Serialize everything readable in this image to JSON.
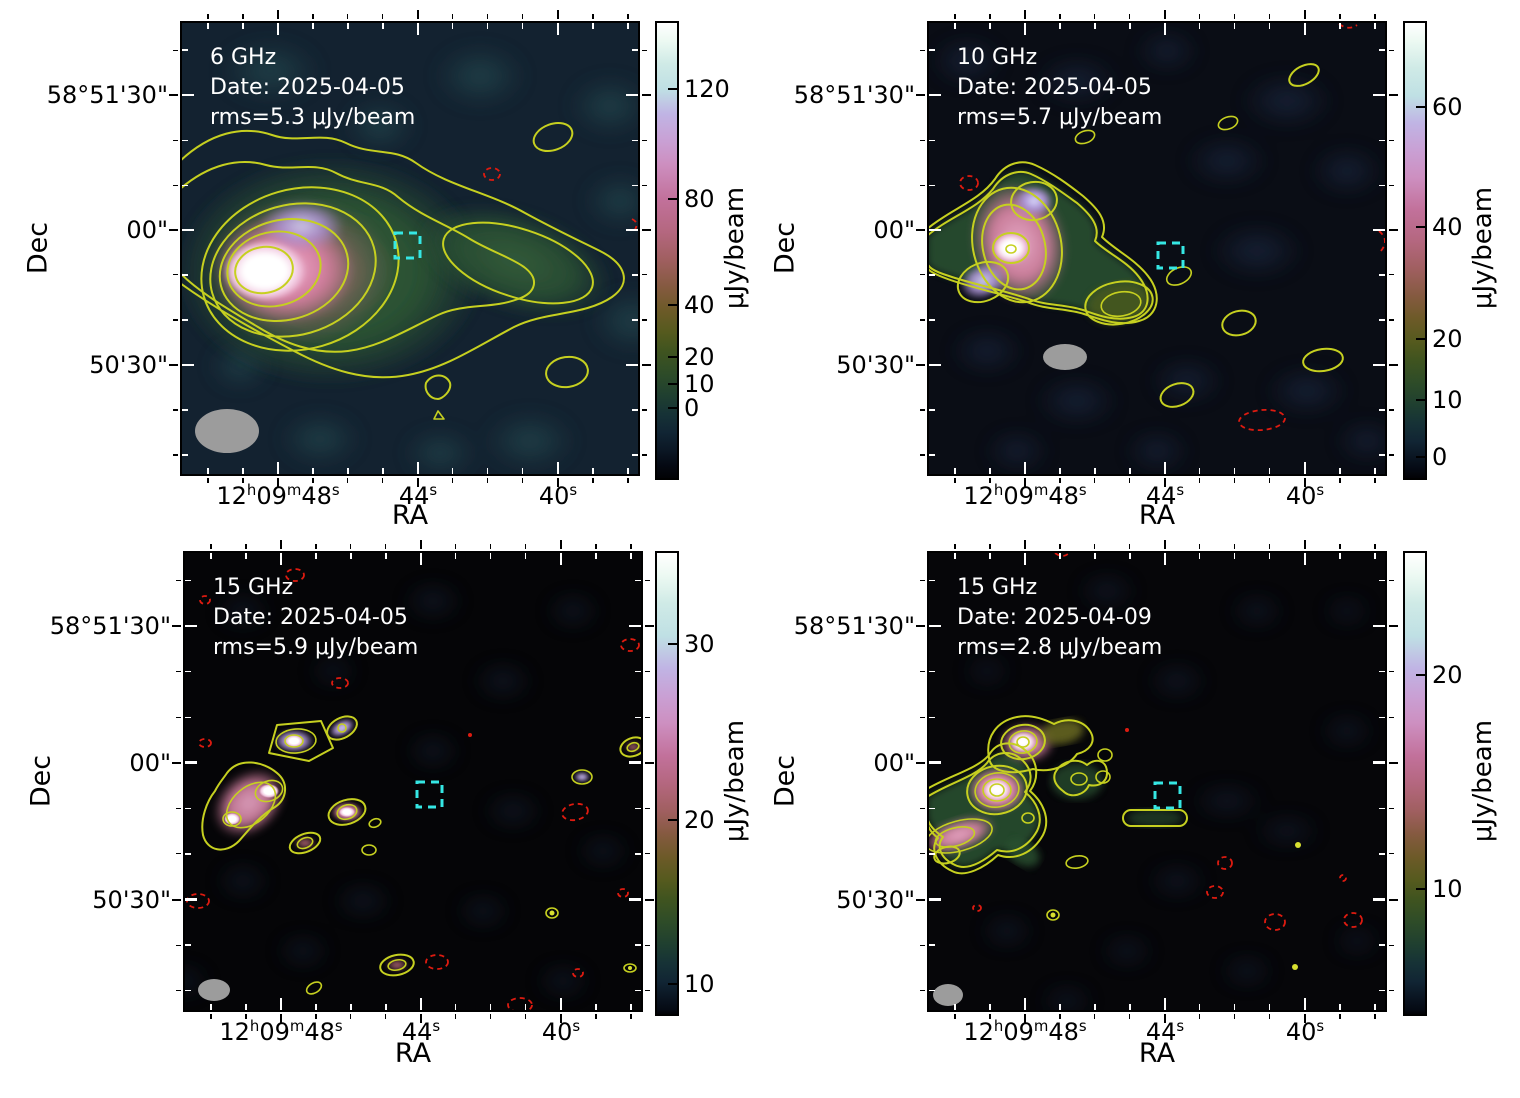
{
  "figure": {
    "description": "2x2 grid of VLA radio continuum maps with colorbars"
  },
  "colors": {
    "positive_contour": "#c6d020",
    "negative_contour": "#de1b10",
    "aperture_box": "#35e7e4",
    "beam_ellipse": "#9c9c9c",
    "annotation_text": "#ffffff",
    "axis_text": "#000000"
  },
  "axes": {
    "x_label": "RA",
    "y_label": "Dec",
    "x_tick_labels": [
      "12h09m48s",
      "44s",
      "40s"
    ],
    "y_tick_labels": [
      "58°51'30\"",
      "00\"",
      "50'30\""
    ],
    "x_major": [
      0.213,
      0.517,
      0.822
    ],
    "x_minor": [
      0.061,
      0.137,
      0.289,
      0.365,
      0.441,
      0.593,
      0.669,
      0.745,
      0.898,
      0.974
    ],
    "y_major": [
      0.163,
      0.459,
      0.756
    ],
    "y_minor": [
      0.064,
      0.262,
      0.361,
      0.558,
      0.657,
      0.855,
      0.954
    ]
  },
  "panels": [
    {
      "freq_label": "6 GHz",
      "date_line": "Date: 2025-04-05",
      "rms_line": "rms=5.3 μJy/beam",
      "colorbar": {
        "label": "μJy/beam",
        "ticks": [
          {
            "t": "120",
            "f": 0.145
          },
          {
            "t": "80",
            "f": 0.387
          },
          {
            "t": "40",
            "f": 0.62
          },
          {
            "t": "20",
            "f": 0.734
          },
          {
            "t": "10",
            "f": 0.793
          },
          {
            "t": "0",
            "f": 0.846
          }
        ]
      }
    },
    {
      "freq_label": "10 GHz",
      "date_line": "Date: 2025-04-05",
      "rms_line": "rms=5.7 μJy/beam",
      "colorbar": {
        "label": "μJy/beam",
        "ticks": [
          {
            "t": "60",
            "f": 0.185
          },
          {
            "t": "40",
            "f": 0.448
          },
          {
            "t": "20",
            "f": 0.695
          },
          {
            "t": "10",
            "f": 0.829
          },
          {
            "t": "0",
            "f": 0.954
          }
        ]
      }
    },
    {
      "freq_label": "15 GHz",
      "date_line": "Date: 2025-04-05",
      "rms_line": "rms=5.9 μJy/beam",
      "colorbar": {
        "label": "μJy/beam",
        "ticks": [
          {
            "t": "30",
            "f": 0.197
          },
          {
            "t": "20",
            "f": 0.579
          },
          {
            "t": "10",
            "f": 0.935
          }
        ]
      }
    },
    {
      "freq_label": "15 GHz",
      "date_line": "Date: 2025-04-09",
      "rms_line": "rms=2.8 μJy/beam",
      "colorbar": {
        "label": "μJy/beam",
        "ticks": [
          {
            "t": "20",
            "f": 0.265
          },
          {
            "t": "10",
            "f": 0.729
          }
        ]
      }
    }
  ],
  "chart_data": [
    {
      "type": "heatmap",
      "title": "6 GHz",
      "date": "2025-04-05",
      "rms_uJy_per_beam": 5.3,
      "colorbar": {
        "label": "μJy/beam",
        "ticks": [
          0,
          10,
          20,
          40,
          80,
          120
        ]
      },
      "x": {
        "label": "RA",
        "ticks": [
          "12h09m48s",
          "44s",
          "40s"
        ]
      },
      "y": {
        "label": "Dec",
        "ticks": [
          "58°51'30\"",
          "00\"",
          "50'30\""
        ]
      },
      "features": [
        "bright extended source east with white core and pink halo",
        "eastern tail of green low-level emission extending west",
        "solid yellow positive contours",
        "red dashed negative contour northwest of center",
        "cyan dashed target aperture square near map center",
        "gray beam ellipse bottom-left"
      ]
    },
    {
      "type": "heatmap",
      "title": "10 GHz",
      "date": "2025-04-05",
      "rms_uJy_per_beam": 5.7,
      "colorbar": {
        "label": "μJy/beam",
        "ticks": [
          0,
          10,
          20,
          40,
          60
        ]
      },
      "x": {
        "label": "RA",
        "ticks": [
          "12h09m48s",
          "44s",
          "40s"
        ]
      },
      "y": {
        "label": "Dec",
        "ticks": [
          "58°51'30\"",
          "00\"",
          "50'30\""
        ]
      },
      "features": [
        "compact double source east with white core",
        "short green tail",
        "scattered small positive contour islands",
        "several red dashed negative contours",
        "cyan dashed target aperture square",
        "gray beam ellipse"
      ]
    },
    {
      "type": "heatmap",
      "title": "15 GHz",
      "date": "2025-04-05",
      "rms_uJy_per_beam": 5.9,
      "colorbar": {
        "label": "μJy/beam",
        "ticks": [
          10,
          20,
          30
        ]
      },
      "x": {
        "label": "RA",
        "ticks": [
          "12h09m48s",
          "44s",
          "40s"
        ]
      },
      "y": {
        "label": "Dec",
        "ticks": [
          "58°51'30\"",
          "00\"",
          "50'30\""
        ]
      },
      "features": [
        "chain of compact knots northeast",
        "many faint noise blobs",
        "scattered red dashed negative contours",
        "cyan dashed target aperture square",
        "small gray beam ellipse"
      ]
    },
    {
      "type": "heatmap",
      "title": "15 GHz",
      "date": "2025-04-09",
      "rms_uJy_per_beam": 2.8,
      "colorbar": {
        "label": "μJy/beam",
        "ticks": [
          10,
          20
        ]
      },
      "x": {
        "label": "RA",
        "ticks": [
          "12h09m48s",
          "44s",
          "40s"
        ]
      },
      "y": {
        "label": "Dec",
        "ticks": [
          "58°51'30\"",
          "00\"",
          "50'30\""
        ]
      },
      "features": [
        "two bright compact knots with nested contours northeast",
        "extended green emission with pink tail",
        "small red dashed negative contours south",
        "cyan dashed target aperture square",
        "small gray beam ellipse"
      ]
    }
  ]
}
